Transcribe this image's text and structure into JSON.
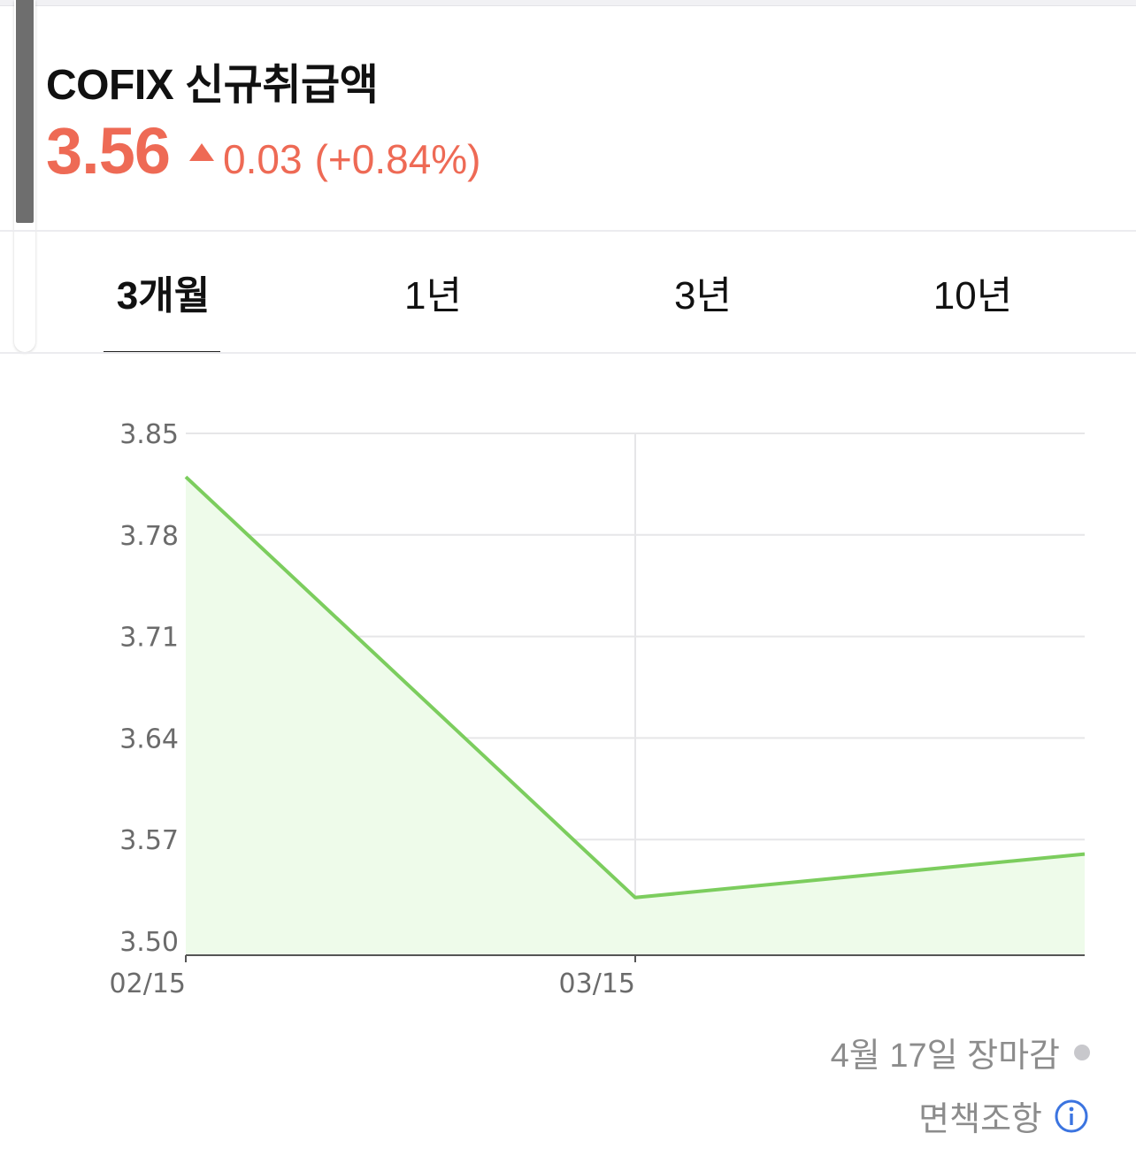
{
  "header": {
    "title": "COFIX 신규취급액",
    "price": "3.56",
    "change": "0.03",
    "change_pct": "(+0.84%)",
    "direction_icon": "triangle-up-icon",
    "accent_color": "#ee6a55"
  },
  "tabs": [
    {
      "label": "3개월",
      "active": true
    },
    {
      "label": "1년",
      "active": false
    },
    {
      "label": "3년",
      "active": false
    },
    {
      "label": "10년",
      "active": false
    }
  ],
  "chart_data": {
    "type": "area",
    "title": "",
    "xlabel": "",
    "ylabel": "",
    "x_ticks": [
      "02/15",
      "03/15"
    ],
    "x": [
      "02/15",
      "03/15",
      "04/15"
    ],
    "values": [
      3.82,
      3.53,
      3.56
    ],
    "ylim": [
      3.5,
      3.85
    ],
    "y_ticks": [
      "3.85",
      "3.78",
      "3.71",
      "3.64",
      "3.57",
      "3.50"
    ],
    "grid": true,
    "line_color": "#7ccd5e",
    "fill_color": "#eefbea"
  },
  "footer": {
    "status": "4월 17일 장마감",
    "disclaimer": "면책조항",
    "info_icon": "info-circle-icon"
  }
}
